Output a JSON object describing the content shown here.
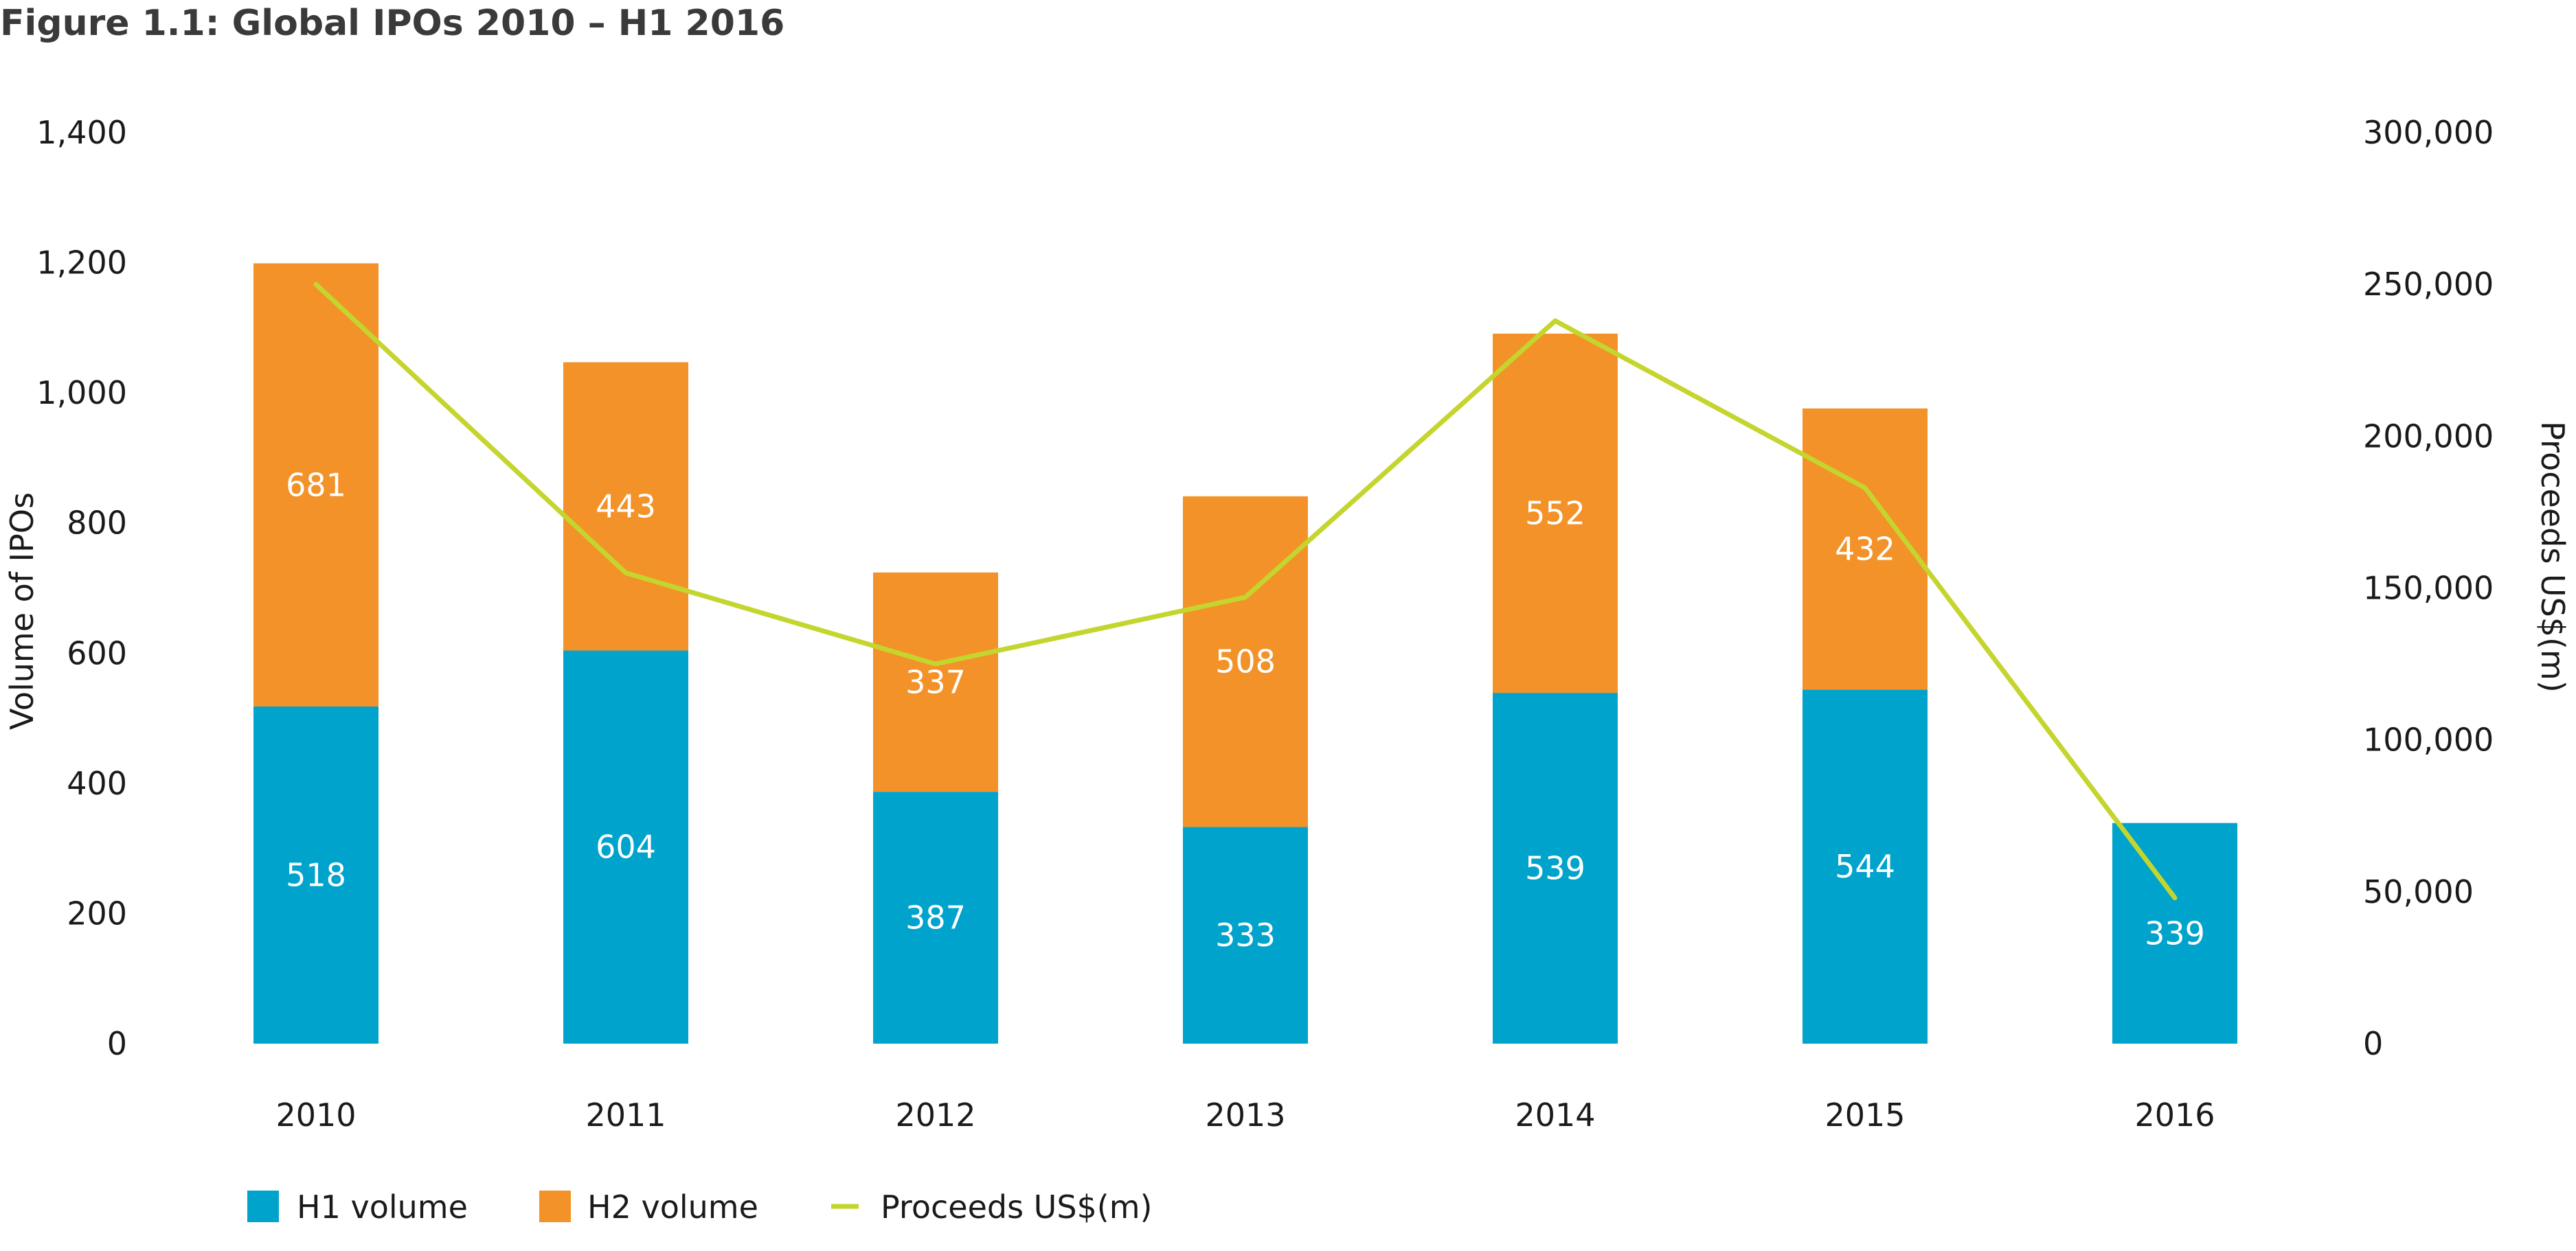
{
  "figure_title": "Figure 1.1: Global IPOs 2010 – H1 2016",
  "colors": {
    "h1": "#00a3cb",
    "h2": "#f39228",
    "proceeds": "#c4d52e"
  },
  "chart_data": {
    "type": "bar",
    "title": "Figure 1.1: Global IPOs 2010 – H1 2016",
    "categories": [
      "2010",
      "2011",
      "2012",
      "2013",
      "2014",
      "2015",
      "2016"
    ],
    "series": [
      {
        "name": "H1 volume",
        "type": "bar",
        "stack": "volume",
        "axis": "left",
        "values": [
          518,
          604,
          387,
          333,
          539,
          544,
          339
        ],
        "labels": [
          "518",
          "604",
          "387",
          "333",
          "539",
          "544",
          "339"
        ]
      },
      {
        "name": "H2 volume",
        "type": "bar",
        "stack": "volume",
        "axis": "left",
        "values": [
          681,
          443,
          337,
          508,
          552,
          432,
          null
        ],
        "labels": [
          "681",
          "443",
          "337",
          "508",
          "552",
          "432",
          ""
        ]
      },
      {
        "name": "Proceeds US$(m)",
        "type": "line",
        "axis": "right",
        "values": [
          250000,
          155000,
          125000,
          147000,
          238000,
          183000,
          48000
        ]
      }
    ],
    "ylabel": "Volume of IPOs",
    "y2label": "Proceeds US$(m)",
    "ylim": [
      0,
      1400
    ],
    "y2lim": [
      0,
      300000
    ],
    "yticks": [
      "0",
      "200",
      "400",
      "600",
      "800",
      "1,000",
      "1,200",
      "1,400"
    ],
    "y2ticks": [
      "0",
      "50,000",
      "100,000",
      "150,000",
      "200,000",
      "250,000",
      "300,000"
    ],
    "grid": false,
    "legend": [
      "H1 volume",
      "H2 volume",
      "Proceeds US$(m)"
    ],
    "legend_position": "bottom-left"
  }
}
